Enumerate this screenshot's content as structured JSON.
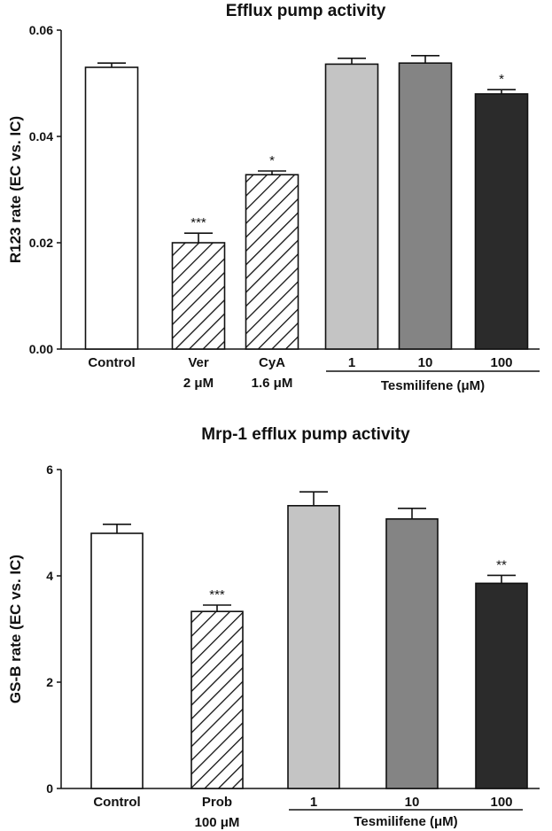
{
  "chart_data": [
    {
      "type": "bar",
      "title": "Efflux pump activity",
      "ylabel": "R123 rate (EC vs. IC)",
      "ylim": [
        0,
        0.06
      ],
      "yticks": [
        "0.00",
        "0.02",
        "0.04",
        "0.06"
      ],
      "categories": [
        {
          "line1": "Control",
          "line2": ""
        },
        {
          "line1": "Ver",
          "line2": "2 μM"
        },
        {
          "line1": "CyA",
          "line2": "1.6 μM"
        },
        {
          "line1": "1",
          "line2": ""
        },
        {
          "line1": "10",
          "line2": ""
        },
        {
          "line1": "100",
          "line2": ""
        }
      ],
      "values": [
        0.053,
        0.02,
        0.0328,
        0.0536,
        0.0538,
        0.048
      ],
      "errors": [
        0.0008,
        0.0018,
        0.0007,
        0.0011,
        0.0014,
        0.0008
      ],
      "significance": [
        "",
        "***",
        "*",
        "",
        "",
        "*"
      ],
      "fills": [
        "#ffffff",
        "hatch",
        "hatch",
        "#c4c4c4",
        "#848484",
        "#2b2b2b"
      ],
      "group_label": "Tesmilifene (μM)"
    },
    {
      "type": "bar",
      "title": "Mrp-1 efflux pump activity",
      "ylabel": "GS-B rate (EC vs. IC)",
      "ylim": [
        0,
        6
      ],
      "yticks": [
        "0",
        "2",
        "4",
        "6"
      ],
      "categories": [
        {
          "line1": "Control",
          "line2": ""
        },
        {
          "line1": "Prob",
          "line2": "100 μM"
        },
        {
          "line1": "1",
          "line2": ""
        },
        {
          "line1": "10",
          "line2": ""
        },
        {
          "line1": "100",
          "line2": ""
        }
      ],
      "values": [
        4.8,
        3.33,
        5.32,
        5.07,
        3.86
      ],
      "errors": [
        0.17,
        0.12,
        0.26,
        0.2,
        0.15
      ],
      "significance": [
        "",
        "***",
        "",
        "",
        "**"
      ],
      "fills": [
        "#ffffff",
        "hatch",
        "#c4c4c4",
        "#848484",
        "#2b2b2b"
      ],
      "group_label": "Tesmilifene (μM)"
    }
  ]
}
